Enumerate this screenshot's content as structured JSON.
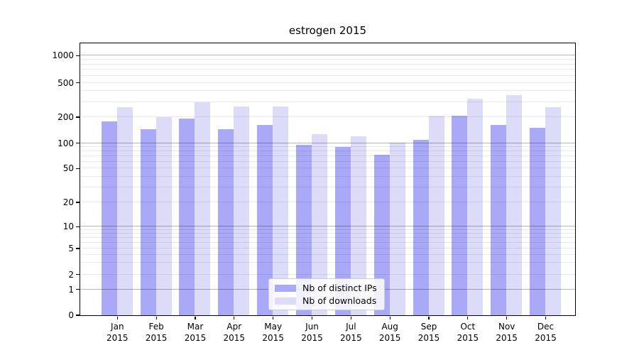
{
  "chart_data": {
    "type": "bar",
    "title": "estrogen 2015",
    "categories": [
      "Jan 2015",
      "Feb 2015",
      "Mar 2015",
      "Apr 2015",
      "May 2015",
      "Jun 2015",
      "Jul 2015",
      "Aug 2015",
      "Sep 2015",
      "Oct 2015",
      "Nov 2015",
      "Dec 2015"
    ],
    "series": [
      {
        "name": "Nb of distinct IPs",
        "color": "#a9a9f7",
        "values": [
          178,
          145,
          190,
          143,
          160,
          95,
          90,
          72,
          108,
          205,
          162,
          150
        ]
      },
      {
        "name": "Nb of downloads",
        "color": "#dcdcf8",
        "values": [
          257,
          197,
          295,
          265,
          265,
          127,
          118,
          101,
          205,
          325,
          360,
          260
        ]
      }
    ],
    "xlabel": "",
    "ylabel": "",
    "yscale": "symlog",
    "ylim": [
      0,
      1380
    ],
    "yticks": [
      0,
      1,
      2,
      5,
      10,
      20,
      50,
      100,
      200,
      500,
      1000
    ],
    "ytick_labels": [
      "0",
      "1",
      "2",
      "5",
      "10",
      "20",
      "50",
      "100",
      "200",
      "500",
      "1000"
    ],
    "grid": {
      "which": "both",
      "major_color": "#b5b5b5",
      "minor_color": "#e7e7e7",
      "drawn_over_bars": true
    },
    "legend": {
      "position": "lower center",
      "entries": [
        "Nb of distinct IPs",
        "Nb of downloads"
      ]
    }
  }
}
